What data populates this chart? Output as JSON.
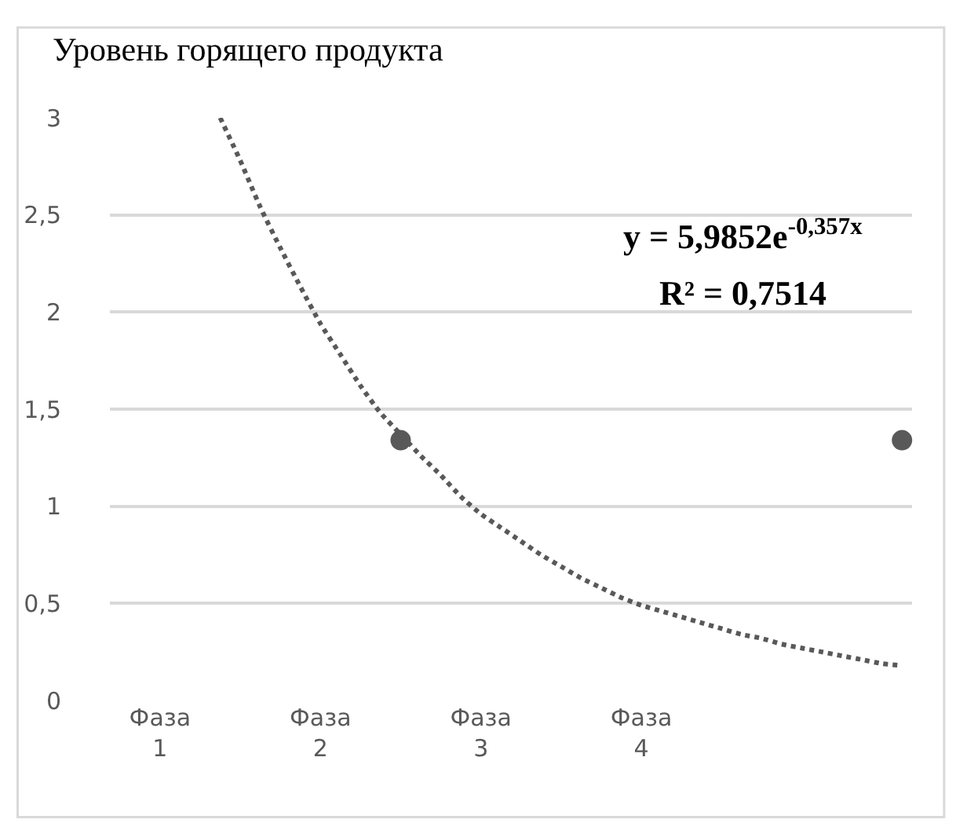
{
  "chart_data": {
    "type": "scatter",
    "title": "Уровень горящего продукта",
    "categories": [
      null,
      null,
      "Фаза 1",
      null,
      null,
      null,
      null,
      null,
      null,
      null,
      "Фаза 2",
      null,
      null,
      null,
      null,
      null,
      null,
      null,
      "Фаза 3",
      null,
      null,
      null,
      null,
      null,
      null,
      null,
      "Фаза 4",
      null,
      null,
      null,
      null,
      null,
      null,
      null,
      null,
      null,
      null,
      null,
      null,
      null
    ],
    "ylim": [
      0,
      3
    ],
    "yticks": [
      {
        "value": 0,
        "label": "0"
      },
      {
        "value": 0.5,
        "label": "0,5"
      },
      {
        "value": 1,
        "label": "1"
      },
      {
        "value": 1.5,
        "label": "1,5"
      },
      {
        "value": 2,
        "label": "2"
      },
      {
        "value": 2.5,
        "label": "2,5"
      },
      {
        "value": 3,
        "label": "3"
      }
    ],
    "grid": "y",
    "legend": false,
    "marker": "circle",
    "series": [
      {
        "color": "#595959",
        "values": [
          null,
          null,
          null,
          null,
          null,
          null,
          null,
          null,
          null,
          null,
          null,
          null,
          null,
          null,
          1.34,
          null,
          null,
          null,
          null,
          null,
          null,
          null,
          null,
          null,
          null,
          null,
          null,
          null,
          null,
          null,
          null,
          null,
          null,
          null,
          null,
          null,
          null,
          null,
          null,
          1.34
        ]
      },
      {
        "type": "line",
        "marker": "none",
        "color": "#595959",
        "line_style": "dotted",
        "values": [
          null,
          null,
          null,
          null,
          null,
          3.0,
          2.78,
          2.54,
          2.33,
          2.13,
          1.94,
          1.78,
          1.62,
          1.48,
          1.37,
          1.26,
          1.16,
          1.05,
          0.96,
          0.89,
          0.82,
          0.75,
          0.69,
          0.63,
          0.58,
          0.53,
          0.49,
          0.46,
          0.43,
          0.4,
          0.37,
          0.34,
          0.32,
          0.29,
          0.27,
          0.25,
          0.23,
          0.21,
          0.19,
          0.18
        ]
      }
    ],
    "annotations": [
      "y = 5,9852e$^{-0,357x}$",
      "R² = 0,7514"
    ]
  }
}
